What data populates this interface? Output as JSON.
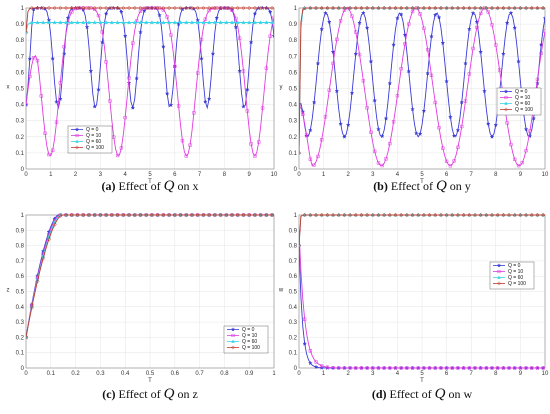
{
  "figure": {
    "panels": [
      {
        "id": "a",
        "tag": "(a)",
        "caption_prefix": "Effect of",
        "caption_symbol": "Q",
        "caption_suffix": "on x"
      },
      {
        "id": "b",
        "tag": "(b)",
        "caption_prefix": "Effect of",
        "caption_symbol": "Q",
        "caption_suffix": "on y"
      },
      {
        "id": "c",
        "tag": "(c)",
        "caption_prefix": "Effect of",
        "caption_symbol": "Q",
        "caption_suffix": "on z"
      },
      {
        "id": "d",
        "tag": "(d)",
        "caption_prefix": "Effect of",
        "caption_symbol": "Q",
        "caption_suffix": "on w"
      }
    ]
  },
  "chart_data": [
    {
      "panel": "a",
      "type": "line",
      "xlabel": "T",
      "ylabel": "x",
      "xlim": [
        0,
        10
      ],
      "ylim": [
        0,
        1
      ],
      "xticks": [
        "0",
        "1",
        "2",
        "3",
        "4",
        "5",
        "6",
        "7",
        "8",
        "9",
        "10"
      ],
      "yticks": [
        "0",
        "0.1",
        "0.2",
        "0.3",
        "0.4",
        "0.5",
        "0.6",
        "0.7",
        "0.8",
        "0.9",
        "1"
      ],
      "grid": true,
      "legend_position": "lower-left",
      "series": [
        {
          "name": "Q = 0",
          "color": "#3b3bd6",
          "marker": "star",
          "behavior": "oscillating",
          "min": 0.38,
          "max": 1.0,
          "period": 1.5,
          "phase": 0.55,
          "sharpness": 3
        },
        {
          "name": "Q = 10",
          "color": "#e03ce0",
          "marker": "square",
          "behavior": "oscillating",
          "min": 0.08,
          "max": 1.0,
          "period": 2.75,
          "phase": 2.35,
          "sharpness": 3
        },
        {
          "name": "Q = 60",
          "color": "#39d6e8",
          "marker": "triangle",
          "behavior": "rise",
          "start": 0.85,
          "level": 0.91,
          "rate": 20
        },
        {
          "name": "Q = 100",
          "color": "#c0392b",
          "marker": "diamond",
          "behavior": "rise",
          "start": 0.85,
          "level": 1.0,
          "rate": 25
        }
      ]
    },
    {
      "panel": "b",
      "type": "line",
      "xlabel": "T",
      "ylabel": "y",
      "xlim": [
        0,
        10
      ],
      "ylim": [
        0,
        1
      ],
      "xticks": [
        "0",
        "1",
        "2",
        "3",
        "4",
        "5",
        "6",
        "7",
        "8",
        "9",
        "10"
      ],
      "yticks": [
        "0",
        "0.1",
        "0.2",
        "0.3",
        "0.4",
        "0.5",
        "0.6",
        "0.7",
        "0.8",
        "0.9",
        "1"
      ],
      "grid": true,
      "legend_position": "middle-right",
      "series": [
        {
          "name": "Q = 0",
          "color": "#3b3bd6",
          "marker": "star",
          "behavior": "oscillating",
          "min": 0.2,
          "max": 0.97,
          "period": 1.5,
          "phase": 1.1,
          "sharpness": 1
        },
        {
          "name": "Q = 10",
          "color": "#e03ce0",
          "marker": "square",
          "behavior": "oscillating",
          "min": 0.02,
          "max": 1.0,
          "period": 2.8,
          "phase": 1.95,
          "sharpness": 1
        },
        {
          "name": "Q = 60",
          "color": "#39d6e8",
          "marker": "triangle",
          "behavior": "rise",
          "start": 0.1,
          "level": 1.0,
          "rate": 25
        },
        {
          "name": "Q = 100",
          "color": "#c0392b",
          "marker": "diamond",
          "behavior": "rise",
          "start": 0.1,
          "level": 1.0,
          "rate": 30
        }
      ]
    },
    {
      "panel": "c",
      "type": "line",
      "xlabel": "T",
      "ylabel": "z",
      "xlim": [
        0,
        1
      ],
      "ylim": [
        0,
        1
      ],
      "xticks": [
        "0",
        "0.1",
        "0.2",
        "0.3",
        "0.4",
        "0.5",
        "0.6",
        "0.7",
        "0.8",
        "0.9",
        "1"
      ],
      "yticks": [
        "0",
        "0.1",
        "0.2",
        "0.3",
        "0.4",
        "0.5",
        "0.6",
        "0.7",
        "0.8",
        "0.9",
        "1"
      ],
      "grid": true,
      "legend_position": "lower-right",
      "series": [
        {
          "name": "Q = 0",
          "color": "#3b3bd6",
          "marker": "star",
          "behavior": "ramp",
          "start": 0.2,
          "level": 1.0,
          "t_end": 0.13
        },
        {
          "name": "Q = 10",
          "color": "#e03ce0",
          "marker": "square",
          "behavior": "ramp",
          "start": 0.2,
          "level": 1.0,
          "t_end": 0.135
        },
        {
          "name": "Q = 60",
          "color": "#39d6e8",
          "marker": "triangle",
          "behavior": "ramp",
          "start": 0.2,
          "level": 1.0,
          "t_end": 0.14
        },
        {
          "name": "Q = 100",
          "color": "#c0392b",
          "marker": "diamond",
          "behavior": "ramp",
          "start": 0.2,
          "level": 1.0,
          "t_end": 0.145
        }
      ]
    },
    {
      "panel": "d",
      "type": "line",
      "xlabel": "T",
      "ylabel": "w",
      "xlim": [
        0,
        10
      ],
      "ylim": [
        0,
        1
      ],
      "xticks": [
        "0",
        "1",
        "2",
        "3",
        "4",
        "5",
        "6",
        "7",
        "8",
        "9",
        "10"
      ],
      "yticks": [
        "0",
        "0.1",
        "0.2",
        "0.3",
        "0.4",
        "0.5",
        "0.6",
        "0.7",
        "0.8",
        "0.9",
        "1"
      ],
      "grid": true,
      "legend_position": "upper-right",
      "series": [
        {
          "name": "Q = 0",
          "color": "#3b3bd6",
          "marker": "star",
          "behavior": "decay",
          "start": 0.8,
          "level": 0.0,
          "rate": 7
        },
        {
          "name": "Q = 10",
          "color": "#e03ce0",
          "marker": "square",
          "behavior": "decay",
          "start": 0.9,
          "level": 0.0,
          "rate": 4.5
        },
        {
          "name": "Q = 60",
          "color": "#39d6e8",
          "marker": "triangle",
          "behavior": "rise",
          "start": 0.8,
          "level": 1.0,
          "rate": 40
        },
        {
          "name": "Q = 100",
          "color": "#c0392b",
          "marker": "diamond",
          "behavior": "rise",
          "start": 0.8,
          "level": 1.0,
          "rate": 40
        }
      ]
    }
  ]
}
